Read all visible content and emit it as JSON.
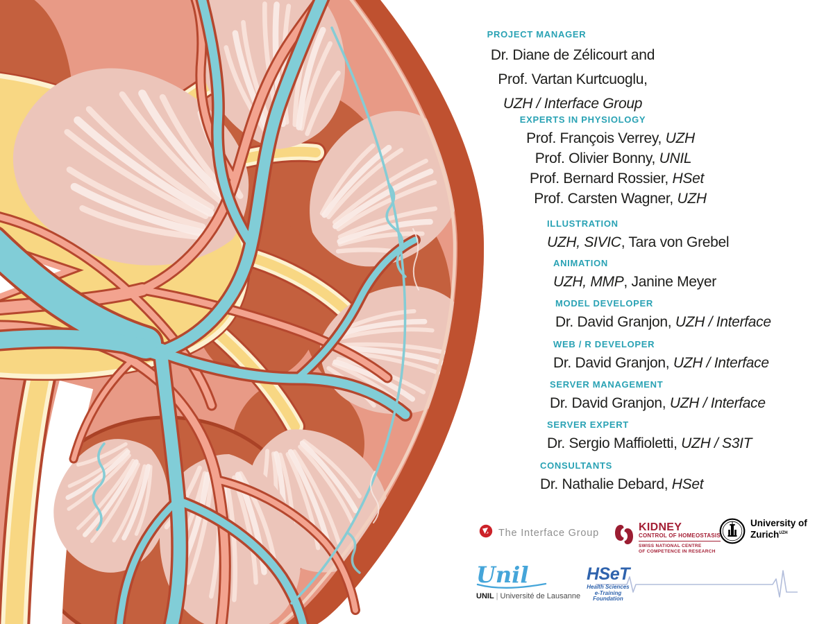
{
  "credits": {
    "heading_color": "#29a2b4",
    "text_color": "#1d1d1b",
    "sections": [
      {
        "heading": "PROJECT MANAGER",
        "lines": [
          [
            {
              "t": "Dr. Diane de Zélicourt and",
              "i": false
            }
          ],
          [
            {
              "t": "Prof. Vartan Kurtcuoglu,",
              "i": false
            }
          ],
          [
            {
              "t": "UZH / Interface Group",
              "i": true
            }
          ]
        ]
      },
      {
        "heading": "EXPERTS IN PHYSIOLOGY",
        "lines": [
          [
            {
              "t": "Prof. François Verrey, ",
              "i": false
            },
            {
              "t": "UZH",
              "i": true
            }
          ],
          [
            {
              "t": "Prof. Olivier Bonny, ",
              "i": false
            },
            {
              "t": "UNIL",
              "i": true
            }
          ],
          [
            {
              "t": "Prof. Bernard Rossier, ",
              "i": false
            },
            {
              "t": "HSet",
              "i": true
            }
          ],
          [
            {
              "t": "Prof. Carsten Wagner, ",
              "i": false
            },
            {
              "t": "UZH",
              "i": true
            }
          ]
        ]
      },
      {
        "heading": "ILLUSTRATION",
        "lines": [
          [
            {
              "t": "UZH, SIVIC",
              "i": true
            },
            {
              "t": ", Tara von Grebel",
              "i": false
            }
          ]
        ]
      },
      {
        "heading": "ANIMATION",
        "lines": [
          [
            {
              "t": "UZH, MMP",
              "i": true
            },
            {
              "t": ", Janine Meyer",
              "i": false
            }
          ]
        ]
      },
      {
        "heading": "MODEL DEVELOPER",
        "lines": [
          [
            {
              "t": "Dr. David Granjon, ",
              "i": false
            },
            {
              "t": "UZH / Interface",
              "i": true
            }
          ]
        ]
      },
      {
        "heading": "WEB / R DEVELOPER",
        "lines": [
          [
            {
              "t": "Dr. David Granjon, ",
              "i": false
            },
            {
              "t": "UZH / Interface",
              "i": true
            }
          ]
        ]
      },
      {
        "heading": "SERVER MANAGEMENT",
        "lines": [
          [
            {
              "t": "Dr. David Granjon, ",
              "i": false
            },
            {
              "t": "UZH / Interface",
              "i": true
            }
          ]
        ]
      },
      {
        "heading": "SERVER EXPERT",
        "lines": [
          [
            {
              "t": "Dr. Sergio Maffioletti, ",
              "i": false
            },
            {
              "t": "UZH / S3IT",
              "i": true
            }
          ]
        ]
      },
      {
        "heading": "CONSULTANTS",
        "lines": [
          [
            {
              "t": "Dr. Nathalie Debard, ",
              "i": false
            },
            {
              "t": "HSet",
              "i": true
            }
          ]
        ]
      }
    ]
  },
  "logos": {
    "interface_group": {
      "label": "The Interface Group",
      "icon_color": "#cc2229",
      "text_color": "#8f8f8f"
    },
    "kidney_nccr": {
      "title": "KIDNEY",
      "subtitle": "CONTROL OF HOMEOSTASIS",
      "tagline_line1": "SWISS NATIONAL CENTRE",
      "tagline_line2": "OF COMPETENCE IN RESEARCH",
      "color": "#a41e34"
    },
    "uzh": {
      "line1": "University of",
      "line2": "Zurich",
      "sup": "UZH",
      "color": "#000000"
    },
    "unil": {
      "script": "Unil",
      "bold": "UNIL",
      "separator": "|",
      "tagline": "Université de Lausanne",
      "script_color": "#45a5d9"
    },
    "hset": {
      "title": "HSeT",
      "tagline_line1": "Health Sciences",
      "tagline_line2": "e-Training",
      "tagline_line3": "Foundation",
      "color": "#2f63ad",
      "ecg_color": "#b2bddb"
    }
  },
  "illustration": {
    "subject": "kidney-cross-section",
    "palette": {
      "capsule": "#bf5130",
      "cortex": "#e89a86",
      "dark_tissue": "#c4603e",
      "pyramid": "#ecc5ba",
      "pyramid_striation": "#f8e1d9",
      "pelvis_yellow": "#f8d783",
      "cream_border": "#fdf2d0",
      "vessel_outline": "#b5472e",
      "vein_teal": "#81cdd7",
      "artery_salmon": "#f3a38f"
    }
  }
}
